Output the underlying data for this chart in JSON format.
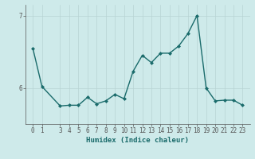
{
  "xlabel": "Humidex (Indice chaleur)",
  "x": [
    0,
    1,
    3,
    4,
    5,
    6,
    7,
    8,
    9,
    10,
    11,
    12,
    13,
    14,
    15,
    16,
    17,
    18,
    19,
    20,
    21,
    22,
    23
  ],
  "y": [
    6.55,
    6.02,
    5.75,
    5.76,
    5.76,
    5.87,
    5.78,
    5.82,
    5.91,
    5.85,
    6.23,
    6.45,
    6.35,
    6.48,
    6.48,
    6.58,
    6.75,
    7.0,
    6.0,
    5.82,
    5.83,
    5.83,
    5.76
  ],
  "ylim": [
    5.5,
    7.15
  ],
  "yticks": [
    6,
    7
  ],
  "xticks": [
    0,
    1,
    3,
    4,
    5,
    6,
    7,
    8,
    9,
    10,
    11,
    12,
    13,
    14,
    15,
    16,
    17,
    18,
    19,
    20,
    21,
    22,
    23
  ],
  "line_color": "#1a6b6b",
  "marker": "D",
  "marker_size": 2.0,
  "bg_color": "#ceeaea",
  "grid_color": "#b8d4d4",
  "axis_color": "#555555",
  "tick_fontsize": 5.5,
  "label_fontsize": 6.5,
  "linewidth": 1.0
}
